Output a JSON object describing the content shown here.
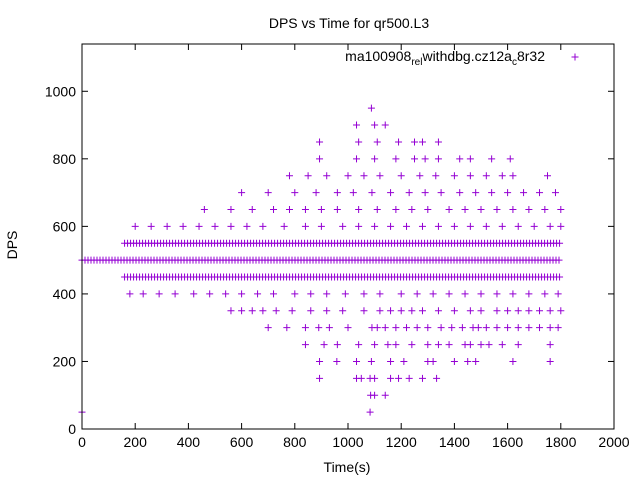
{
  "chart_data": {
    "type": "scatter",
    "title": "DPS vs Time for qr500.L3",
    "xlabel": "Time(s)",
    "ylabel": "DPS",
    "xlim": [
      0,
      2000
    ],
    "ylim": [
      0,
      1140
    ],
    "xticks": [
      "0",
      "200",
      "400",
      "600",
      "800",
      "1000",
      "1200",
      "1400",
      "1600",
      "1800",
      "2000"
    ],
    "xtick_values": [
      0,
      200,
      400,
      600,
      800,
      1000,
      1200,
      1400,
      1600,
      1800,
      2000
    ],
    "yticks": [
      "0",
      "200",
      "400",
      "600",
      "800",
      "1000"
    ],
    "ytick_values": [
      0,
      200,
      400,
      600,
      800,
      1000
    ],
    "grid": false,
    "legend_position": "top-right",
    "marker": "+",
    "color": "#9400d3",
    "series": [
      {
        "name": "ma100908_rel_withdbg.cz12a_c8r32",
        "legend_display": {
          "parts": [
            "ma100908",
            "rel",
            "withdbg.cz12a",
            "c",
            "8r32"
          ],
          "subscript": [
            false,
            true,
            false,
            true,
            false
          ]
        },
        "points": [
          [
            0,
            50
          ],
          [
            1083,
            50
          ],
          [
            1085,
            100
          ],
          [
            1100,
            100
          ],
          [
            1140,
            100
          ],
          [
            893,
            150
          ],
          [
            1032,
            150
          ],
          [
            1050,
            150
          ],
          [
            1083,
            150
          ],
          [
            1100,
            150
          ],
          [
            1160,
            150
          ],
          [
            1190,
            150
          ],
          [
            1230,
            150
          ],
          [
            1280,
            150
          ],
          [
            1333,
            150
          ],
          [
            893,
            200
          ],
          [
            958,
            200
          ],
          [
            1032,
            200
          ],
          [
            1088,
            200
          ],
          [
            1160,
            200
          ],
          [
            1210,
            200
          ],
          [
            1300,
            200
          ],
          [
            1320,
            200
          ],
          [
            1400,
            200
          ],
          [
            1450,
            200
          ],
          [
            1480,
            200
          ],
          [
            1620,
            200
          ],
          [
            1760,
            200
          ],
          [
            700,
            300
          ],
          [
            770,
            300
          ],
          [
            840,
            300
          ],
          [
            890,
            300
          ],
          [
            930,
            300
          ],
          [
            1000,
            300
          ],
          [
            1090,
            300
          ],
          [
            1110,
            300
          ],
          [
            1140,
            300
          ],
          [
            1180,
            300
          ],
          [
            1220,
            300
          ],
          [
            1260,
            300
          ],
          [
            1300,
            300
          ],
          [
            1350,
            300
          ],
          [
            1390,
            300
          ],
          [
            1430,
            300
          ],
          [
            1470,
            300
          ],
          [
            1490,
            300
          ],
          [
            1520,
            300
          ],
          [
            1560,
            300
          ],
          [
            1600,
            300
          ],
          [
            1640,
            300
          ],
          [
            1680,
            300
          ],
          [
            1720,
            300
          ],
          [
            1760,
            300
          ],
          [
            1790,
            300
          ],
          [
            840,
            250
          ],
          [
            910,
            250
          ],
          [
            960,
            250
          ],
          [
            1040,
            250
          ],
          [
            1100,
            250
          ],
          [
            1150,
            250
          ],
          [
            1180,
            250
          ],
          [
            1240,
            250
          ],
          [
            1300,
            250
          ],
          [
            1340,
            250
          ],
          [
            1380,
            250
          ],
          [
            1440,
            250
          ],
          [
            1460,
            250
          ],
          [
            1500,
            250
          ],
          [
            1530,
            250
          ],
          [
            1580,
            250
          ],
          [
            1640,
            250
          ],
          [
            1760,
            250
          ],
          [
            560,
            350
          ],
          [
            600,
            350
          ],
          [
            640,
            350
          ],
          [
            680,
            350
          ],
          [
            730,
            350
          ],
          [
            790,
            350
          ],
          [
            860,
            350
          ],
          [
            920,
            350
          ],
          [
            980,
            350
          ],
          [
            1060,
            350
          ],
          [
            1120,
            350
          ],
          [
            1160,
            350
          ],
          [
            1200,
            350
          ],
          [
            1240,
            350
          ],
          [
            1280,
            350
          ],
          [
            1340,
            350
          ],
          [
            1400,
            350
          ],
          [
            1460,
            350
          ],
          [
            1500,
            350
          ],
          [
            1560,
            350
          ],
          [
            1600,
            350
          ],
          [
            1640,
            350
          ],
          [
            1680,
            350
          ],
          [
            1720,
            350
          ],
          [
            1760,
            350
          ],
          [
            1800,
            350
          ],
          [
            180,
            400
          ],
          [
            230,
            400
          ],
          [
            290,
            400
          ],
          [
            350,
            400
          ],
          [
            420,
            400
          ],
          [
            480,
            400
          ],
          [
            540,
            400
          ],
          [
            600,
            400
          ],
          [
            660,
            400
          ],
          [
            720,
            400
          ],
          [
            800,
            400
          ],
          [
            860,
            400
          ],
          [
            920,
            400
          ],
          [
            990,
            400
          ],
          [
            1060,
            400
          ],
          [
            1120,
            400
          ],
          [
            1200,
            400
          ],
          [
            1260,
            400
          ],
          [
            1320,
            400
          ],
          [
            1380,
            400
          ],
          [
            1440,
            400
          ],
          [
            1500,
            400
          ],
          [
            1560,
            400
          ],
          [
            1620,
            400
          ],
          [
            1680,
            400
          ],
          [
            1740,
            400
          ],
          [
            1790,
            400
          ],
          [
            200,
            600
          ],
          [
            260,
            600
          ],
          [
            320,
            600
          ],
          [
            380,
            600
          ],
          [
            440,
            600
          ],
          [
            500,
            600
          ],
          [
            560,
            600
          ],
          [
            620,
            600
          ],
          [
            680,
            600
          ],
          [
            760,
            600
          ],
          [
            840,
            600
          ],
          [
            900,
            600
          ],
          [
            980,
            600
          ],
          [
            1040,
            600
          ],
          [
            1100,
            600
          ],
          [
            1160,
            600
          ],
          [
            1220,
            600
          ],
          [
            1280,
            600
          ],
          [
            1340,
            600
          ],
          [
            1400,
            600
          ],
          [
            1460,
            600
          ],
          [
            1520,
            600
          ],
          [
            1580,
            600
          ],
          [
            1640,
            600
          ],
          [
            1700,
            600
          ],
          [
            1760,
            600
          ],
          [
            1800,
            600
          ],
          [
            460,
            650
          ],
          [
            560,
            650
          ],
          [
            640,
            650
          ],
          [
            720,
            650
          ],
          [
            780,
            650
          ],
          [
            840,
            650
          ],
          [
            900,
            650
          ],
          [
            960,
            650
          ],
          [
            1040,
            650
          ],
          [
            1110,
            650
          ],
          [
            1180,
            650
          ],
          [
            1240,
            650
          ],
          [
            1300,
            650
          ],
          [
            1380,
            650
          ],
          [
            1440,
            650
          ],
          [
            1500,
            650
          ],
          [
            1560,
            650
          ],
          [
            1620,
            650
          ],
          [
            1680,
            650
          ],
          [
            1740,
            650
          ],
          [
            1800,
            650
          ],
          [
            600,
            700
          ],
          [
            700,
            700
          ],
          [
            800,
            700
          ],
          [
            880,
            700
          ],
          [
            960,
            700
          ],
          [
            1020,
            700
          ],
          [
            1090,
            700
          ],
          [
            1160,
            700
          ],
          [
            1230,
            700
          ],
          [
            1290,
            700
          ],
          [
            1350,
            700
          ],
          [
            1420,
            700
          ],
          [
            1480,
            700
          ],
          [
            1540,
            700
          ],
          [
            1600,
            700
          ],
          [
            1660,
            700
          ],
          [
            1720,
            700
          ],
          [
            1780,
            700
          ],
          [
            780,
            750
          ],
          [
            850,
            750
          ],
          [
            920,
            750
          ],
          [
            1000,
            750
          ],
          [
            1060,
            750
          ],
          [
            1120,
            750
          ],
          [
            1200,
            750
          ],
          [
            1270,
            750
          ],
          [
            1330,
            750
          ],
          [
            1400,
            750
          ],
          [
            1460,
            750
          ],
          [
            1520,
            750
          ],
          [
            1580,
            750
          ],
          [
            1620,
            750
          ],
          [
            1750,
            750
          ],
          [
            893,
            800
          ],
          [
            1032,
            800
          ],
          [
            1100,
            800
          ],
          [
            1180,
            800
          ],
          [
            1250,
            800
          ],
          [
            1290,
            800
          ],
          [
            1340,
            800
          ],
          [
            1420,
            800
          ],
          [
            1460,
            800
          ],
          [
            1540,
            800
          ],
          [
            1610,
            800
          ],
          [
            893,
            850
          ],
          [
            1040,
            850
          ],
          [
            1110,
            850
          ],
          [
            1190,
            850
          ],
          [
            1250,
            850
          ],
          [
            1280,
            850
          ],
          [
            1340,
            850
          ],
          [
            1032,
            900
          ],
          [
            1100,
            900
          ],
          [
            1140,
            900
          ],
          [
            1088,
            950
          ]
        ],
        "bands": [
          {
            "y": 450,
            "x_start": 160,
            "x_end": 1800
          },
          {
            "y": 500,
            "x_start": 0,
            "x_end": 1800
          },
          {
            "y": 550,
            "x_start": 160,
            "x_end": 1800
          }
        ]
      }
    ]
  }
}
